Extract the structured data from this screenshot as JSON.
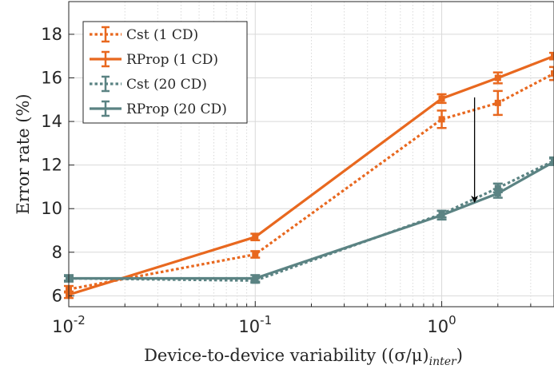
{
  "chart_data": {
    "type": "line",
    "xscale": "log",
    "xlim": [
      0.01,
      4
    ],
    "ylim": [
      5.5,
      19.5
    ],
    "xlabel": "Device-to-device variability ((σ/μ)",
    "xlabel_sub": "inter",
    "xlabel_end": ")",
    "ylabel": "Error rate (%)",
    "grid": true,
    "legend_position": "top-left",
    "x_ticks": [
      {
        "value": 0.01,
        "base": "10",
        "exp": "-2"
      },
      {
        "value": 0.1,
        "base": "10",
        "exp": "-1"
      },
      {
        "value": 1,
        "base": "10",
        "exp": "0"
      }
    ],
    "y_ticks": [
      {
        "value": 6,
        "label": "6"
      },
      {
        "value": 8,
        "label": "8"
      },
      {
        "value": 10,
        "label": "10"
      },
      {
        "value": 12,
        "label": "12"
      },
      {
        "value": 14,
        "label": "14"
      },
      {
        "value": 16,
        "label": "16"
      },
      {
        "value": 18,
        "label": "18"
      }
    ],
    "series": [
      {
        "name": "Cst (1 CD)",
        "color": "#e8681f",
        "dash": "dotted",
        "x": [
          0.01,
          0.1,
          1,
          2,
          4
        ],
        "y": [
          6.3,
          7.9,
          14.1,
          14.85,
          16.2
        ],
        "err": [
          0.15,
          0.15,
          0.4,
          0.55,
          0.3
        ]
      },
      {
        "name": "RProp (1 CD)",
        "color": "#e8681f",
        "dash": "solid",
        "x": [
          0.01,
          0.1,
          1,
          2,
          4
        ],
        "y": [
          6.05,
          8.7,
          15.05,
          16.0,
          17.0
        ],
        "err": [
          0.15,
          0.15,
          0.2,
          0.25,
          0.15
        ]
      },
      {
        "name": "Cst (20 CD)",
        "color": "#5b8383",
        "dash": "dotted",
        "x": [
          0.01,
          0.1,
          1,
          2,
          4
        ],
        "y": [
          6.8,
          6.7,
          9.75,
          10.95,
          12.2
        ],
        "err": [
          0.1,
          0.1,
          0.15,
          0.2,
          0.15
        ]
      },
      {
        "name": "RProp (20 CD)",
        "color": "#5b8383",
        "dash": "solid",
        "x": [
          0.01,
          0.1,
          1,
          2,
          4
        ],
        "y": [
          6.8,
          6.8,
          9.7,
          10.7,
          12.15
        ],
        "err": [
          0.15,
          0.15,
          0.2,
          0.2,
          0.15
        ]
      }
    ],
    "annotations": [
      {
        "type": "arrow",
        "x": 1.5,
        "y_start": 15.1,
        "y_end": 10.3,
        "color": "#000000"
      }
    ]
  }
}
